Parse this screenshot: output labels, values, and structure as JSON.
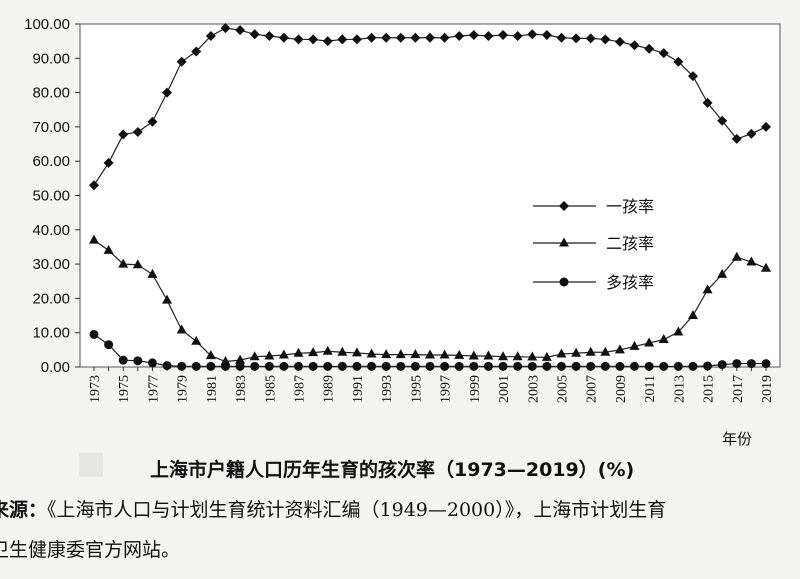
{
  "caption": "上海市户籍人口历年生育的孩次率（1973—2019）(%)",
  "source_label": "来源：",
  "source_text": "《上海市人口与计划生育统计资料汇编（1949—2000）》，上海市计划生育",
  "source_line2": "卫生健康委官方网站。",
  "chart_data": {
    "type": "line",
    "xlabel": "年份",
    "ylabel": "",
    "ylim": [
      0,
      100
    ],
    "yticks": [
      "0.00",
      "10.00",
      "20.00",
      "30.00",
      "40.00",
      "50.00",
      "60.00",
      "70.00",
      "80.00",
      "90.00",
      "100.00"
    ],
    "x": [
      1973,
      1974,
      1975,
      1976,
      1977,
      1978,
      1979,
      1980,
      1981,
      1982,
      1983,
      1984,
      1985,
      1986,
      1987,
      1988,
      1989,
      1990,
      1991,
      1992,
      1993,
      1994,
      1995,
      1996,
      1997,
      1998,
      1999,
      2000,
      2001,
      2002,
      2003,
      2004,
      2005,
      2006,
      2007,
      2008,
      2009,
      2010,
      2011,
      2012,
      2013,
      2014,
      2015,
      2016,
      2017,
      2018,
      2019
    ],
    "xticks": [
      1973,
      1975,
      1977,
      1979,
      1981,
      1983,
      1985,
      1987,
      1989,
      1991,
      1993,
      1995,
      1997,
      1999,
      2001,
      2003,
      2005,
      2007,
      2009,
      2011,
      2013,
      2015,
      2017,
      2019
    ],
    "legend_position": "right-middle",
    "series": [
      {
        "name": "一孩率",
        "marker": "diamond",
        "values": [
          53.0,
          59.5,
          67.8,
          68.5,
          71.5,
          80.0,
          89.0,
          92.0,
          96.5,
          98.8,
          98.2,
          97.0,
          96.5,
          96.0,
          95.5,
          95.5,
          95.0,
          95.5,
          95.5,
          96.0,
          96.0,
          96.0,
          96.0,
          96.0,
          96.0,
          96.5,
          96.8,
          96.5,
          96.8,
          96.5,
          97.0,
          96.8,
          96.0,
          95.8,
          95.8,
          95.5,
          94.8,
          93.8,
          92.8,
          91.5,
          89.0,
          84.8,
          77.0,
          71.8,
          66.5,
          68.0,
          70.0
        ]
      },
      {
        "name": "二孩率",
        "marker": "triangle",
        "values": [
          37.0,
          34.0,
          30.0,
          29.8,
          27.0,
          19.5,
          10.8,
          7.5,
          3.3,
          1.6,
          2.0,
          3.0,
          3.2,
          3.5,
          4.0,
          4.2,
          4.6,
          4.3,
          4.1,
          3.8,
          3.6,
          3.6,
          3.6,
          3.5,
          3.5,
          3.4,
          3.2,
          3.2,
          3.0,
          3.0,
          2.9,
          2.8,
          3.8,
          4.0,
          4.3,
          4.3,
          5.0,
          6.0,
          7.0,
          8.0,
          10.2,
          15.0,
          22.5,
          27.0,
          32.0,
          30.6,
          28.8
        ]
      },
      {
        "name": "多孩率",
        "marker": "circle",
        "values": [
          9.5,
          6.5,
          2.0,
          1.8,
          1.2,
          0.4,
          0.2,
          0.2,
          0.2,
          0.2,
          0.2,
          0.2,
          0.2,
          0.2,
          0.2,
          0.2,
          0.2,
          0.2,
          0.2,
          0.2,
          0.2,
          0.2,
          0.2,
          0.2,
          0.2,
          0.2,
          0.2,
          0.2,
          0.2,
          0.2,
          0.2,
          0.2,
          0.2,
          0.2,
          0.2,
          0.2,
          0.2,
          0.2,
          0.2,
          0.2,
          0.2,
          0.2,
          0.3,
          0.7,
          1.0,
          1.0,
          1.0
        ]
      }
    ]
  }
}
